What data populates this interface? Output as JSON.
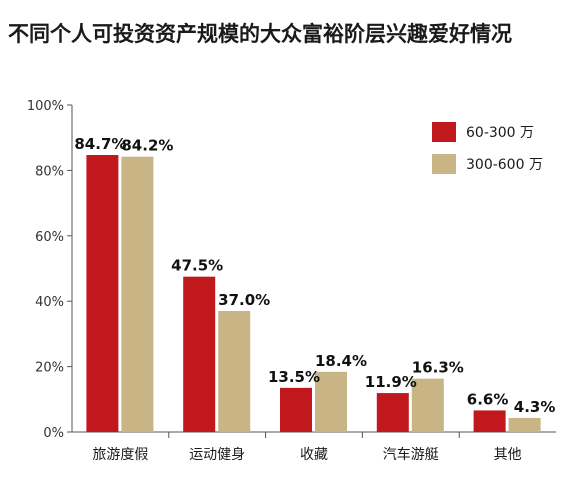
{
  "chart_data": {
    "type": "bar",
    "title": "不同个人可投资资产规模的大众富裕阶层兴趣爱好情况",
    "categories": [
      "旅游度假",
      "运动健身",
      "收藏",
      "汽车游艇",
      "其他"
    ],
    "series": [
      {
        "name": "60-300 万",
        "values": [
          84.7,
          47.5,
          13.5,
          11.9,
          6.6
        ],
        "labels": [
          "84.7%",
          "47.5%",
          "13.5%",
          "11.9%",
          "6.6%"
        ]
      },
      {
        "name": "300-600 万",
        "values": [
          84.2,
          37.0,
          18.4,
          16.3,
          4.3
        ],
        "labels": [
          "84.2%",
          "37.0%",
          "18.4%",
          "16.3%",
          "4.3%"
        ]
      }
    ],
    "ylim": [
      0,
      100
    ],
    "yticks": [
      0,
      20,
      40,
      60,
      80,
      100
    ],
    "ytick_labels": [
      "0%",
      "20%",
      "40%",
      "60%",
      "80%",
      "100%"
    ],
    "legend_position": "top-right",
    "grid": false,
    "colors": [
      "#c0181c",
      "#c8b484"
    ]
  }
}
